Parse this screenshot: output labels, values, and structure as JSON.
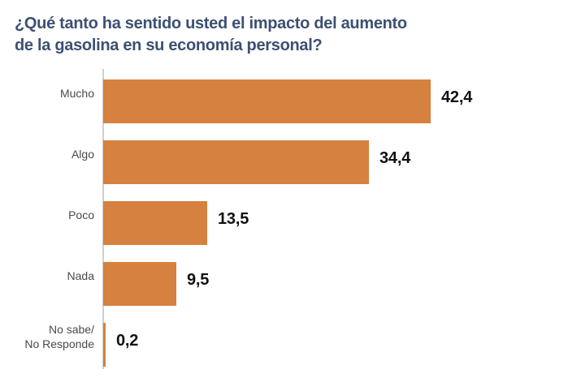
{
  "title": "¿Qué tanto ha sentido usted el impacto del aumento\nde la gasolina en su economía personal?",
  "chart_data": {
    "type": "bar",
    "orientation": "horizontal",
    "title": "¿Qué tanto ha sentido usted el impacto del aumento de la gasolina en su economía personal?",
    "categories": [
      "Mucho",
      "Algo",
      "Poco",
      "Nada",
      "No sabe/\nNo Responde"
    ],
    "values": [
      42.4,
      34.4,
      13.5,
      9.5,
      0.2
    ],
    "value_labels": [
      "42,4",
      "34,4",
      "13,5",
      "9,5",
      "0,2"
    ],
    "xlabel": "",
    "ylabel": "",
    "xlim": [
      0,
      45
    ],
    "grid": false,
    "legend": false,
    "bar_color": "#D6813F",
    "title_color": "#3C5072",
    "label_color": "#4A4A4A",
    "value_color": "#111111",
    "axis_line_color": "#CFCFCF",
    "background_color": "#FFFFFF"
  }
}
